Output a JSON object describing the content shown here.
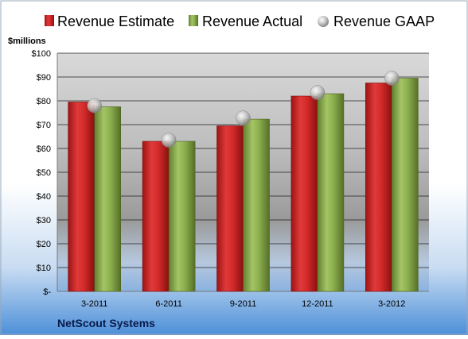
{
  "chart_data": {
    "type": "bar",
    "ylabel": "$millions",
    "ylim": [
      0,
      100
    ],
    "yticks": [
      0,
      10,
      20,
      30,
      40,
      50,
      60,
      70,
      80,
      90,
      100
    ],
    "ytick_labels": [
      "$-",
      "$10",
      "$20",
      "$30",
      "$40",
      "$50",
      "$60",
      "$70",
      "$80",
      "$90",
      "$100"
    ],
    "categories": [
      "3-2011",
      "6-2011",
      "9-2011",
      "12-2011",
      "3-2012"
    ],
    "series": [
      {
        "name": "Revenue Estimate",
        "kind": "bar",
        "color": "#d42a2a",
        "values": [
          79.5,
          63,
          69.5,
          82,
          87.5
        ]
      },
      {
        "name": "Revenue Actual",
        "kind": "bar",
        "color": "#8cb04e",
        "values": [
          77.5,
          63,
          72.3,
          83,
          89.5
        ]
      },
      {
        "name": "Revenue GAAP",
        "kind": "marker",
        "color": "#b0b0b0",
        "values": [
          78,
          63.5,
          72.8,
          83.5,
          89.5
        ]
      }
    ],
    "legend_position": "top",
    "grid": true,
    "footer": "NetScout Systems"
  }
}
